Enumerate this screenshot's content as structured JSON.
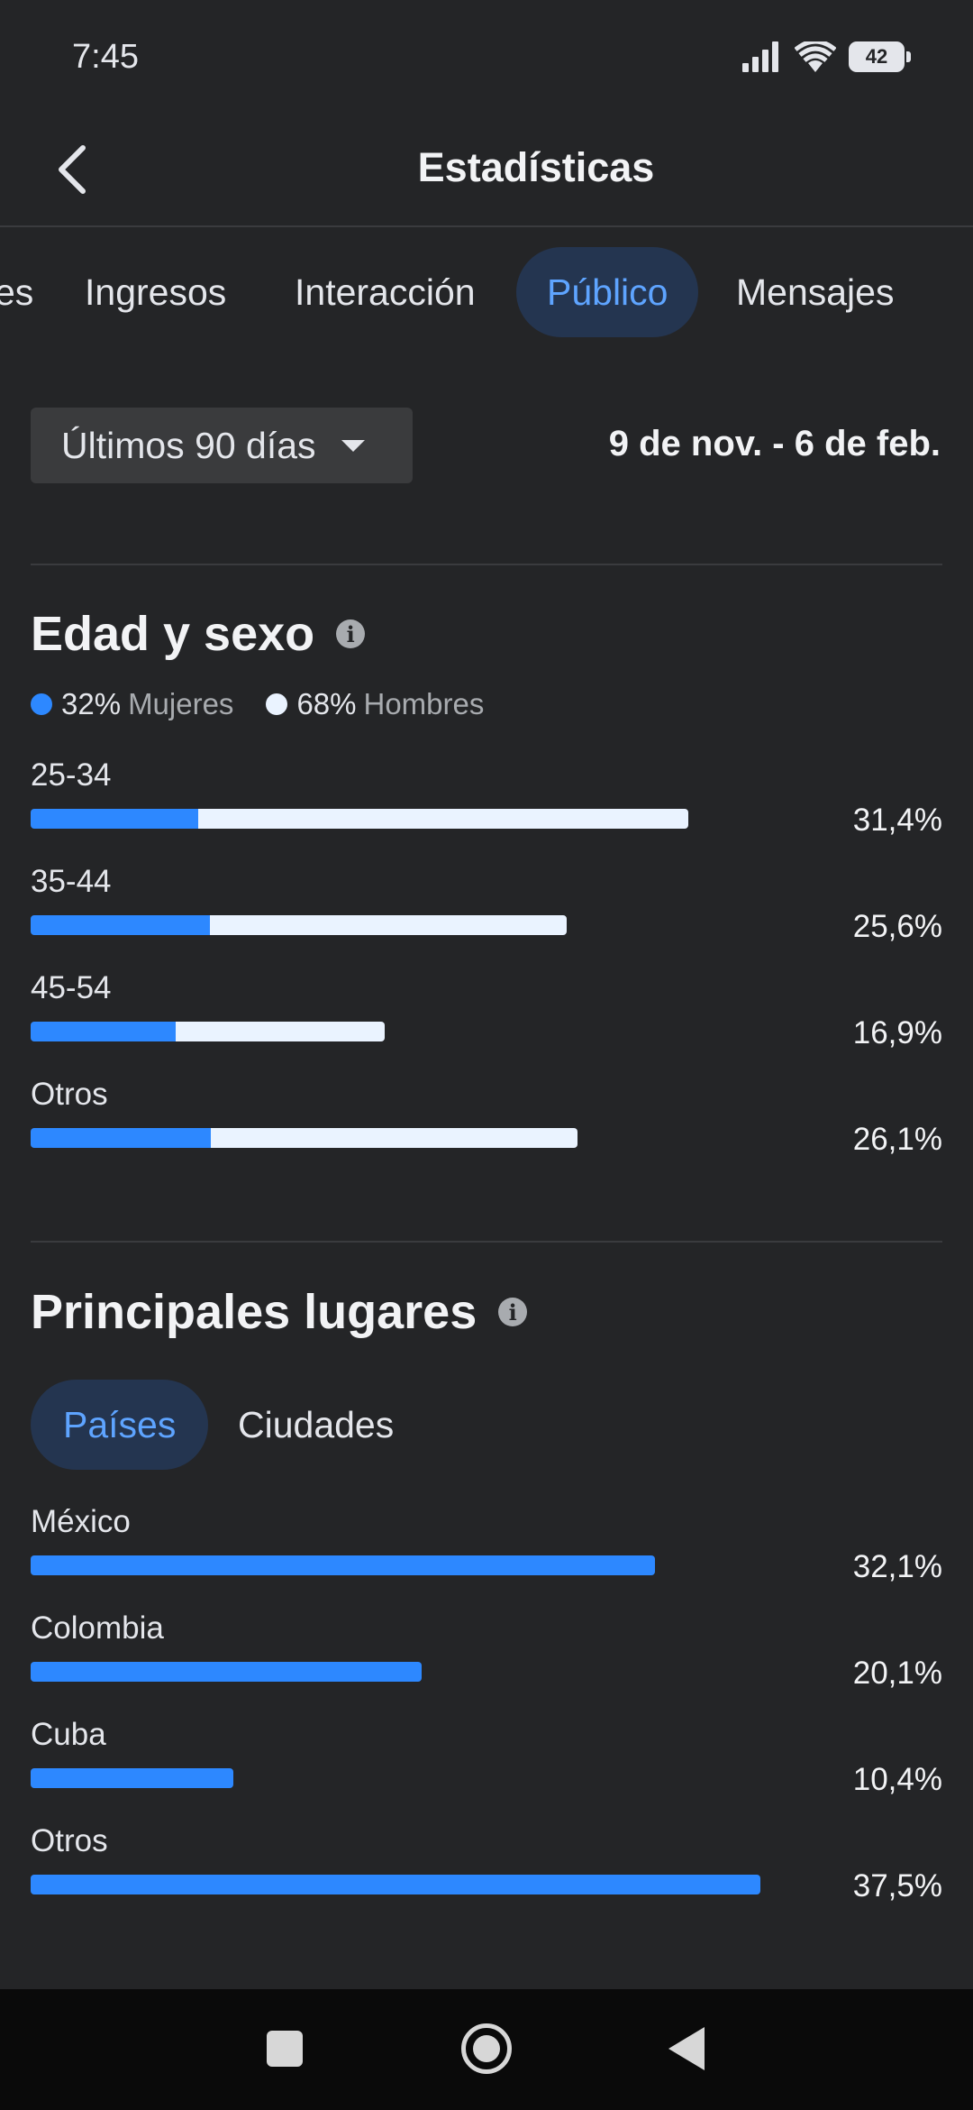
{
  "status_bar": {
    "time": "7:45",
    "battery": "42"
  },
  "header": {
    "title": "Estadísticas"
  },
  "tabs": [
    {
      "label": "es"
    },
    {
      "label": "Ingresos"
    },
    {
      "label": "Interacción"
    },
    {
      "label": "Público",
      "active": true
    },
    {
      "label": "Mensajes"
    }
  ],
  "filter": {
    "range_label": "Últimos 90 días",
    "date_range": "9 de nov. - 6 de feb."
  },
  "age_gender": {
    "title": "Edad y sexo",
    "legend": [
      {
        "pct": "32%",
        "label": "Mujeres",
        "color": "#2d88ff"
      },
      {
        "pct": "68%",
        "label": "Hombres",
        "color": "#eaf3ff"
      }
    ],
    "rows": [
      {
        "label": "25-34",
        "value": "31,4%",
        "total_pct": 31.4,
        "women_share": 0.255
      },
      {
        "label": "35-44",
        "value": "25,6%",
        "total_pct": 25.6,
        "women_share": 0.335
      },
      {
        "label": "45-54",
        "value": "16,9%",
        "total_pct": 16.9,
        "women_share": 0.41
      },
      {
        "label": "Otros",
        "value": "26,1%",
        "total_pct": 26.1,
        "women_share": 0.33
      }
    ]
  },
  "top_locations": {
    "title": "Principales lugares",
    "subtabs": [
      {
        "label": "Países",
        "active": true
      },
      {
        "label": "Ciudades"
      }
    ],
    "rows": [
      {
        "label": "México",
        "value": "32,1%",
        "pct": 32.1
      },
      {
        "label": "Colombia",
        "value": "20,1%",
        "pct": 20.1
      },
      {
        "label": "Cuba",
        "value": "10,4%",
        "pct": 10.4
      },
      {
        "label": "Otros",
        "value": "37,5%",
        "pct": 37.5
      }
    ]
  },
  "colors": {
    "accent": "#2d88ff",
    "accent_text": "#5ea4ff",
    "background": "#242527",
    "bar_secondary": "#eaf3ff"
  }
}
